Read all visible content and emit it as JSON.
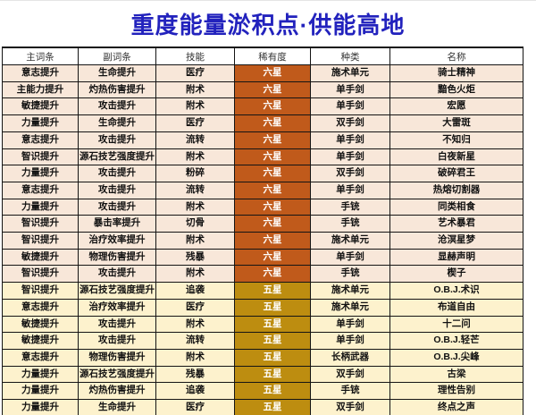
{
  "title": "重度能量淤积点·供能高地",
  "colors": {
    "title_blue": "#2222bd",
    "border": "#141414",
    "six_star_cell_bg": "#c05a1b",
    "six_star_row_bg": "#f8e7d9",
    "five_star_cell_bg": "#bd8d10",
    "five_star_row_bg": "#fdf2cd",
    "rarity_text": "#ffffff"
  },
  "chart_data": {
    "type": "table",
    "title": "重度能量淤积点·供能高地",
    "columns": [
      "主词条",
      "副词条",
      "技能",
      "稀有度",
      "种类",
      "名称"
    ],
    "rows": [
      [
        "意志提升",
        "生命提升",
        "医疗",
        "六星",
        "施术单元",
        "骑士精神"
      ],
      [
        "主能力提升",
        "灼热伤害提升",
        "附术",
        "六星",
        "单手剑",
        "黯色火炬"
      ],
      [
        "敏捷提升",
        "攻击提升",
        "附术",
        "六星",
        "单手剑",
        "宏愿"
      ],
      [
        "力量提升",
        "生命提升",
        "医疗",
        "六星",
        "双手剑",
        "大雷斑"
      ],
      [
        "意志提升",
        "攻击提升",
        "流转",
        "六星",
        "单手剑",
        "不知归"
      ],
      [
        "智识提升",
        "源石技艺强度提升",
        "附术",
        "六星",
        "单手剑",
        "白夜新星"
      ],
      [
        "力量提升",
        "攻击提升",
        "粉碎",
        "六星",
        "双手剑",
        "破碎君王"
      ],
      [
        "意志提升",
        "攻击提升",
        "流转",
        "六星",
        "单手剑",
        "热熔切割器"
      ],
      [
        "力量提升",
        "攻击提升",
        "附术",
        "六星",
        "手铳",
        "同类相食"
      ],
      [
        "智识提升",
        "暴击率提升",
        "切骨",
        "六星",
        "手铳",
        "艺术暴君"
      ],
      [
        "智识提升",
        "治疗效率提升",
        "附术",
        "六星",
        "施术单元",
        "沧溟星梦"
      ],
      [
        "敏捷提升",
        "物理伤害提升",
        "残暴",
        "六星",
        "单手剑",
        "显赫声明"
      ],
      [
        "智识提升",
        "攻击提升",
        "附术",
        "六星",
        "手铳",
        "楔子"
      ],
      [
        "智识提升",
        "源石技艺强度提升",
        "追袭",
        "五星",
        "施术单元",
        "O.B.J.术识"
      ],
      [
        "意志提升",
        "治疗效率提升",
        "医疗",
        "五星",
        "施术单元",
        "布道自由"
      ],
      [
        "敏捷提升",
        "攻击提升",
        "附术",
        "五星",
        "单手剑",
        "十二问"
      ],
      [
        "敏捷提升",
        "攻击提升",
        "流转",
        "五星",
        "单手剑",
        "O.B.J.轻芒"
      ],
      [
        "意志提升",
        "物理伤害提升",
        "附术",
        "五星",
        "长柄武器",
        "O.B.J.尖峰"
      ],
      [
        "力量提升",
        "源石技艺强度提升",
        "残暴",
        "五星",
        "双手剑",
        "古梁"
      ],
      [
        "力量提升",
        "灼热伤害提升",
        "追袭",
        "五星",
        "手铳",
        "理性告别"
      ],
      [
        "力量提升",
        "生命提升",
        "医疗",
        "五星",
        "双手剑",
        "终点之声"
      ]
    ],
    "rarity_values": [
      "六星",
      "五星"
    ],
    "layout_hints": {
      "rarity_column_index": 3,
      "six_star_rows": 13,
      "five_star_rows": 8,
      "grid": true
    }
  }
}
